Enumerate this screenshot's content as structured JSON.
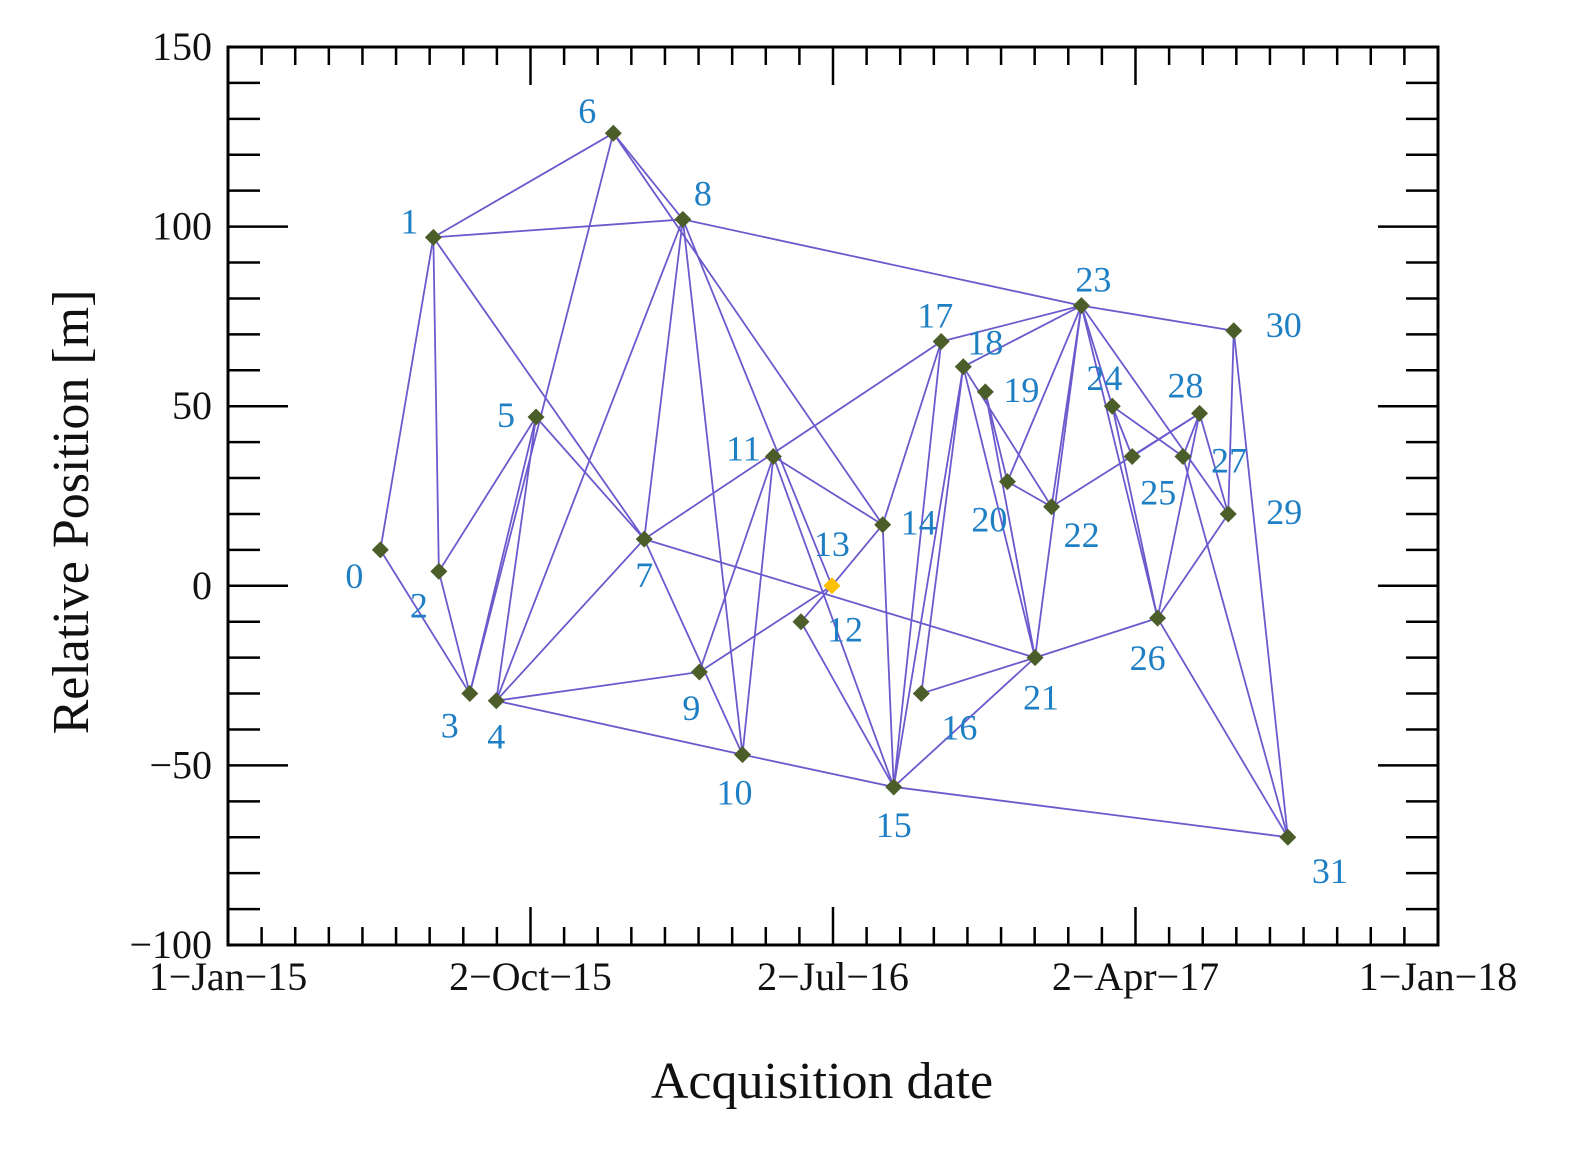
{
  "chart_data": {
    "type": "scatter",
    "xlabel": "Acquisition date",
    "ylabel": "Relative Position [m]",
    "xlim": [
      "2015-01-01",
      "2018-01-01"
    ],
    "ylim": [
      -100,
      150
    ],
    "x_ticks": [
      {
        "date": "2015-01-01",
        "label": "1−Jan−15"
      },
      {
        "date": "2015-10-02",
        "label": "2−Oct−15"
      },
      {
        "date": "2016-07-02",
        "label": "2−Jul−16"
      },
      {
        "date": "2017-04-02",
        "label": "2−Apr−17"
      },
      {
        "date": "2018-01-01",
        "label": "1−Jan−18"
      }
    ],
    "y_ticks": [
      {
        "value": 150,
        "label": "150"
      },
      {
        "value": 100,
        "label": "100"
      },
      {
        "value": 50,
        "label": "50"
      },
      {
        "value": 0,
        "label": "0"
      },
      {
        "value": -50,
        "label": "−50"
      },
      {
        "value": -100,
        "label": "−100"
      }
    ],
    "grid": false,
    "colors": {
      "point": "#4b5e2a",
      "reference_point": "#ffc000",
      "edge": "#6a5acd",
      "label": "#1f7fc4"
    },
    "reference_point": "13",
    "points": [
      {
        "id": "0",
        "date": "2015-05-19",
        "y": 10
      },
      {
        "id": "1",
        "date": "2015-07-06",
        "y": 97
      },
      {
        "id": "2",
        "date": "2015-07-11",
        "y": 4
      },
      {
        "id": "3",
        "date": "2015-08-08",
        "y": -30
      },
      {
        "id": "4",
        "date": "2015-09-01",
        "y": -32
      },
      {
        "id": "5",
        "date": "2015-10-07",
        "y": 47
      },
      {
        "id": "6",
        "date": "2015-12-16",
        "y": 126
      },
      {
        "id": "7",
        "date": "2016-01-13",
        "y": 13
      },
      {
        "id": "8",
        "date": "2016-02-17",
        "y": 102
      },
      {
        "id": "9",
        "date": "2016-03-03",
        "y": -24
      },
      {
        "id": "10",
        "date": "2016-04-11",
        "y": -47
      },
      {
        "id": "11",
        "date": "2016-05-09",
        "y": 36
      },
      {
        "id": "12",
        "date": "2016-06-03",
        "y": -10
      },
      {
        "id": "13",
        "date": "2016-07-01",
        "y": 0
      },
      {
        "id": "14",
        "date": "2016-08-16",
        "y": 17
      },
      {
        "id": "15",
        "date": "2016-08-26",
        "y": -56
      },
      {
        "id": "16",
        "date": "2016-09-20",
        "y": -30
      },
      {
        "id": "17",
        "date": "2016-10-08",
        "y": 68
      },
      {
        "id": "18",
        "date": "2016-10-28",
        "y": 61
      },
      {
        "id": "19",
        "date": "2016-11-17",
        "y": 54
      },
      {
        "id": "20",
        "date": "2016-12-07",
        "y": 29
      },
      {
        "id": "21",
        "date": "2017-01-01",
        "y": -20
      },
      {
        "id": "22",
        "date": "2017-01-16",
        "y": 22
      },
      {
        "id": "23",
        "date": "2017-02-12",
        "y": 78
      },
      {
        "id": "24",
        "date": "2017-03-12",
        "y": 50
      },
      {
        "id": "25",
        "date": "2017-03-30",
        "y": 36
      },
      {
        "id": "26",
        "date": "2017-04-22",
        "y": -9
      },
      {
        "id": "27",
        "date": "2017-05-15",
        "y": 36
      },
      {
        "id": "28",
        "date": "2017-05-30",
        "y": 48
      },
      {
        "id": "29",
        "date": "2017-06-25",
        "y": 20
      },
      {
        "id": "30",
        "date": "2017-06-30",
        "y": 71
      },
      {
        "id": "31",
        "date": "2017-08-18",
        "y": -70
      }
    ],
    "edges": [
      [
        "0",
        "1"
      ],
      [
        "0",
        "3"
      ],
      [
        "1",
        "2"
      ],
      [
        "1",
        "6"
      ],
      [
        "1",
        "8"
      ],
      [
        "1",
        "7"
      ],
      [
        "2",
        "3"
      ],
      [
        "2",
        "5"
      ],
      [
        "3",
        "5"
      ],
      [
        "3",
        "6"
      ],
      [
        "4",
        "5"
      ],
      [
        "4",
        "8"
      ],
      [
        "4",
        "7"
      ],
      [
        "4",
        "9"
      ],
      [
        "4",
        "10"
      ],
      [
        "5",
        "7"
      ],
      [
        "6",
        "8"
      ],
      [
        "6",
        "14"
      ],
      [
        "7",
        "8"
      ],
      [
        "7",
        "10"
      ],
      [
        "7",
        "17"
      ],
      [
        "7",
        "21"
      ],
      [
        "8",
        "10"
      ],
      [
        "8",
        "13"
      ],
      [
        "8",
        "23"
      ],
      [
        "9",
        "11"
      ],
      [
        "9",
        "13"
      ],
      [
        "10",
        "11"
      ],
      [
        "10",
        "15"
      ],
      [
        "11",
        "14"
      ],
      [
        "11",
        "15"
      ],
      [
        "12",
        "13"
      ],
      [
        "12",
        "15"
      ],
      [
        "13",
        "14"
      ],
      [
        "14",
        "15"
      ],
      [
        "14",
        "17"
      ],
      [
        "15",
        "17"
      ],
      [
        "15",
        "18"
      ],
      [
        "15",
        "21"
      ],
      [
        "15",
        "31"
      ],
      [
        "16",
        "18"
      ],
      [
        "16",
        "21"
      ],
      [
        "17",
        "23"
      ],
      [
        "18",
        "21"
      ],
      [
        "18",
        "22"
      ],
      [
        "18",
        "23"
      ],
      [
        "19",
        "20"
      ],
      [
        "19",
        "21"
      ],
      [
        "20",
        "23"
      ],
      [
        "20",
        "22"
      ],
      [
        "21",
        "23"
      ],
      [
        "21",
        "26"
      ],
      [
        "22",
        "23"
      ],
      [
        "22",
        "28"
      ],
      [
        "23",
        "24"
      ],
      [
        "23",
        "26"
      ],
      [
        "23",
        "29"
      ],
      [
        "23",
        "30"
      ],
      [
        "24",
        "25"
      ],
      [
        "24",
        "27"
      ],
      [
        "24",
        "26"
      ],
      [
        "25",
        "28"
      ],
      [
        "26",
        "28"
      ],
      [
        "26",
        "29"
      ],
      [
        "26",
        "31"
      ],
      [
        "27",
        "28"
      ],
      [
        "27",
        "31"
      ],
      [
        "28",
        "29"
      ],
      [
        "29",
        "30"
      ],
      [
        "30",
        "31"
      ]
    ]
  }
}
